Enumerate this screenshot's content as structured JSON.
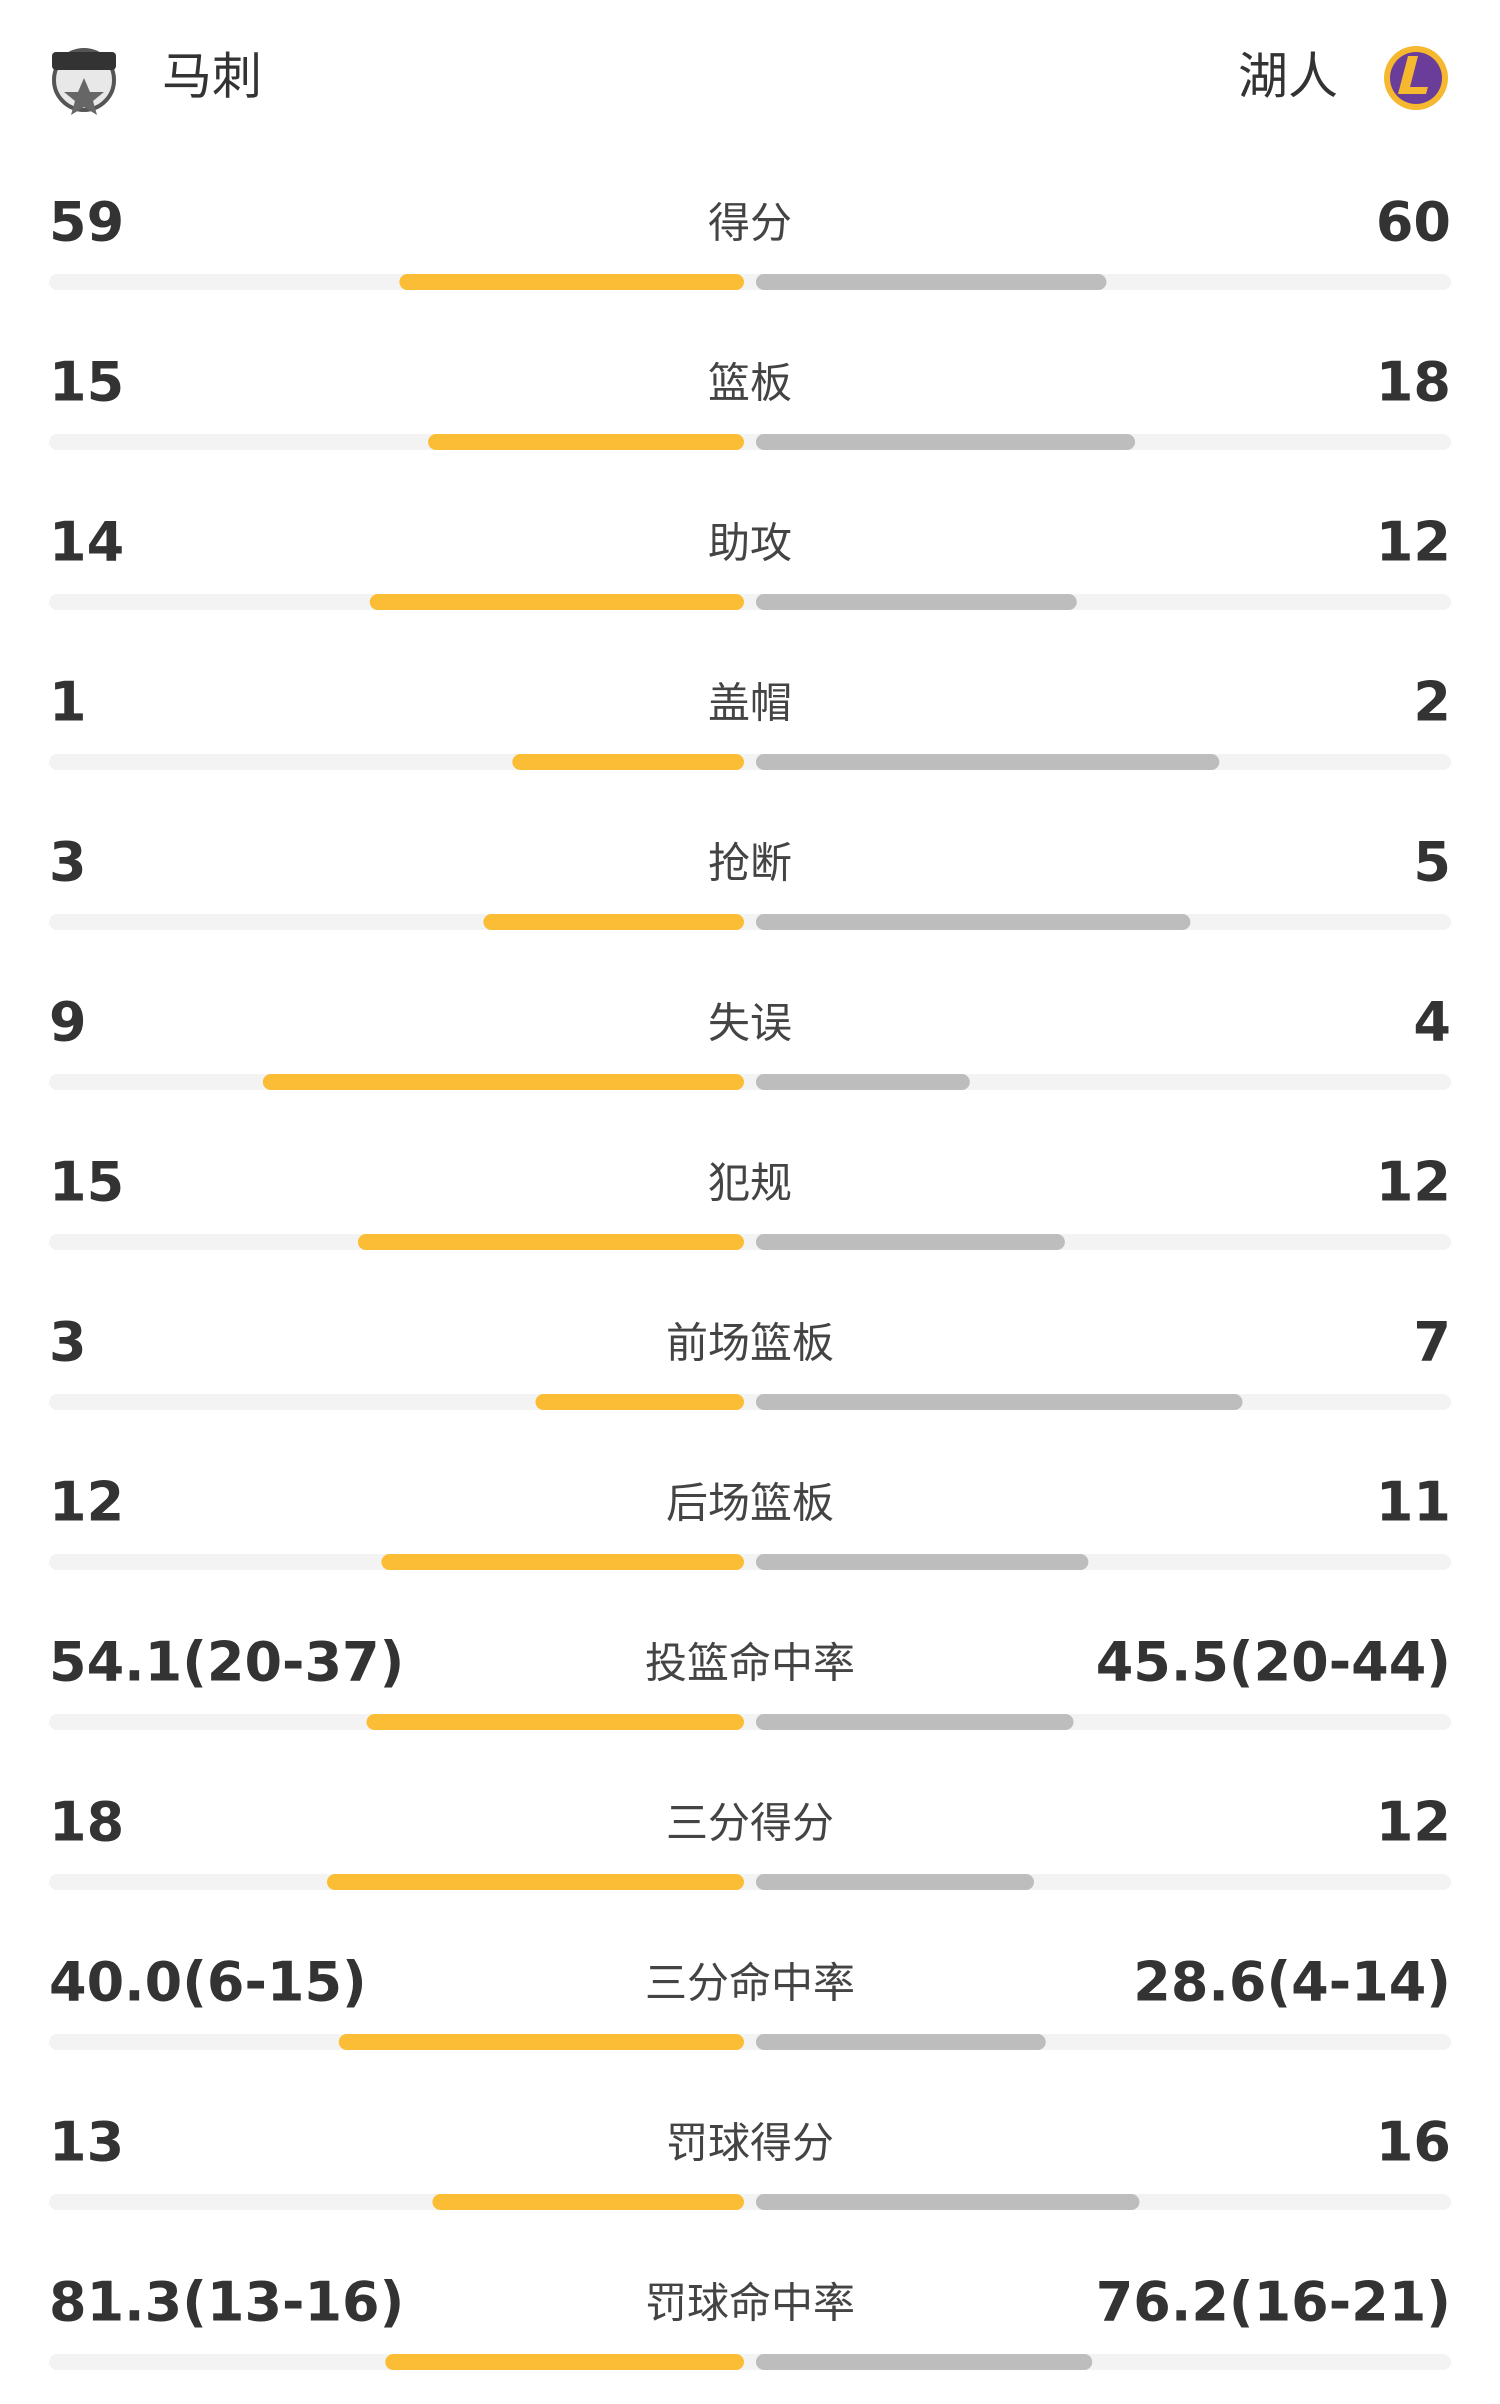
{
  "teams": {
    "home": "马刺",
    "away": "湖人"
  },
  "stats": [
    {
      "label": "得分",
      "home": 59,
      "away": 60
    },
    {
      "label": "篮板",
      "home": 15,
      "away": 18
    },
    {
      "label": "助攻",
      "home": 14,
      "away": 12
    },
    {
      "label": "盖帽",
      "home": 1,
      "away": 2
    },
    {
      "label": "抢断",
      "home": 3,
      "away": 5
    },
    {
      "label": "失误",
      "home": 9,
      "away": 4
    },
    {
      "label": "犯规",
      "home": 15,
      "away": 12
    },
    {
      "label": "前场篮板",
      "home": 3,
      "away": 7
    },
    {
      "label": "后场篮板",
      "home": 12,
      "away": 11
    },
    {
      "label": "投篮命中率",
      "home": 54.1,
      "home_label": "54.1(20-37)",
      "away": 45.5,
      "away_label": "45.5(20-44)"
    },
    {
      "label": "三分得分",
      "home": 18,
      "away": 12
    },
    {
      "label": "三分命中率",
      "home": 40.0,
      "home_label": "40.0(6-15)",
      "away": 28.6,
      "away_label": "28.6(4-14)"
    },
    {
      "label": "罚球得分",
      "home": 13,
      "away": 16
    },
    {
      "label": "罚球命中率",
      "home": 81.3,
      "home_label": "81.3(13-16)",
      "away": 76.2,
      "away_label": "76.2(16-21)"
    }
  ]
}
